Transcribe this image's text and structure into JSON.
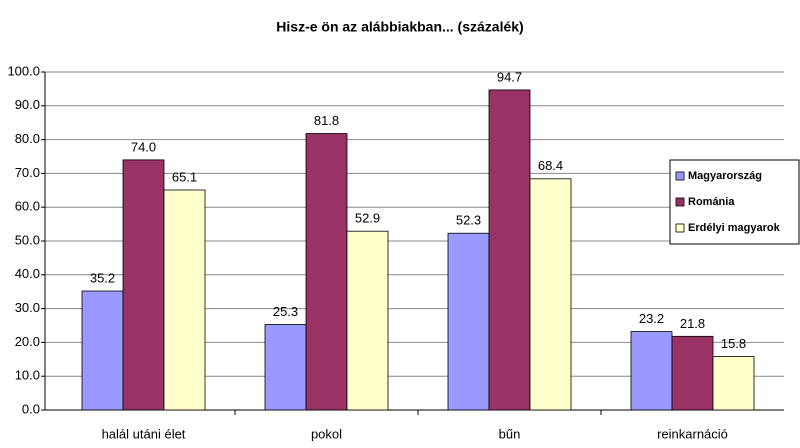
{
  "chart_data": {
    "type": "bar",
    "title": "Hisz-e ön  az alábbiakban... (százalék)",
    "categories": [
      "halál utáni élet",
      "pokol",
      "bűn",
      "reinkarnáció"
    ],
    "series": [
      {
        "name": "Magyarország",
        "color": "#9999ff",
        "values": [
          35.2,
          25.3,
          52.3,
          23.2
        ],
        "value_labels": [
          "35.2",
          "25.3",
          "52.3",
          "23.2"
        ]
      },
      {
        "name": "Románia",
        "color": "#993366",
        "values": [
          74.0,
          81.8,
          94.7,
          21.8
        ],
        "value_labels": [
          "74.0",
          "81.8",
          "94.7",
          "21.8"
        ]
      },
      {
        "name": "Erdélyi magyarok",
        "color": "#ffffcc",
        "values": [
          65.1,
          52.9,
          68.4,
          15.8
        ],
        "value_labels": [
          "65.1",
          "52.9",
          "68.4",
          "15.8"
        ]
      }
    ],
    "ylim": [
      0,
      100
    ],
    "yticks": [
      {
        "value": 0,
        "label": "0.0"
      },
      {
        "value": 10,
        "label": "10.0"
      },
      {
        "value": 20,
        "label": "20.0"
      },
      {
        "value": 30,
        "label": "30.0"
      },
      {
        "value": 40,
        "label": "40.0"
      },
      {
        "value": 50,
        "label": "50.0"
      },
      {
        "value": 60,
        "label": "60.0"
      },
      {
        "value": 70,
        "label": "70.0"
      },
      {
        "value": 80,
        "label": "80.0"
      },
      {
        "value": 90,
        "label": "90.0"
      },
      {
        "value": 100,
        "label": "100.0"
      }
    ],
    "grid": true,
    "legend": "right"
  }
}
